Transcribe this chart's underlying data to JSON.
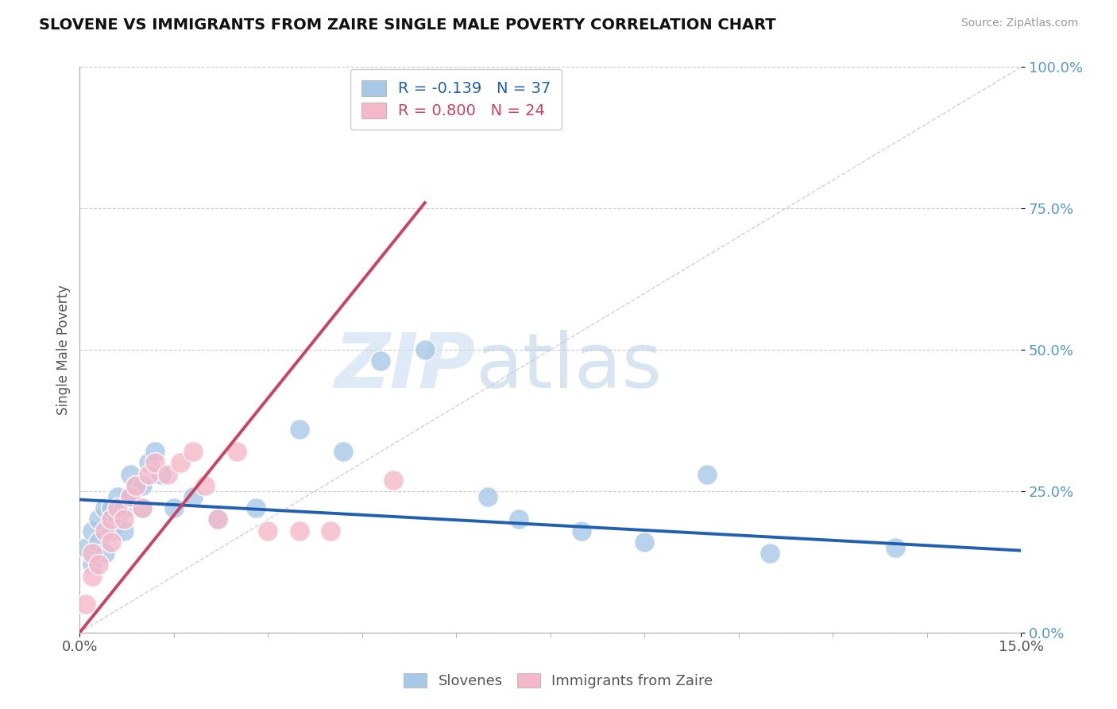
{
  "title": "SLOVENE VS IMMIGRANTS FROM ZAIRE SINGLE MALE POVERTY CORRELATION CHART",
  "source": "Source: ZipAtlas.com",
  "ylabel": "Single Male Poverty",
  "legend_blue_r": "R = -0.139",
  "legend_blue_n": "N = 37",
  "legend_pink_r": "R = 0.800",
  "legend_pink_n": "N = 24",
  "blue_color": "#a8c8e8",
  "pink_color": "#f4b8c8",
  "blue_line_color": "#2060b0",
  "pink_line_color": "#d04060",
  "diagonal_color": "#cccccc",
  "watermark_zip": "ZIP",
  "watermark_atlas": "atlas",
  "blue_scatter_x": [
    0.001,
    0.002,
    0.002,
    0.003,
    0.003,
    0.004,
    0.004,
    0.005,
    0.005,
    0.005,
    0.006,
    0.006,
    0.007,
    0.007,
    0.008,
    0.008,
    0.009,
    0.01,
    0.01,
    0.011,
    0.012,
    0.013,
    0.015,
    0.018,
    0.022,
    0.028,
    0.035,
    0.042,
    0.048,
    0.055,
    0.065,
    0.07,
    0.08,
    0.09,
    0.1,
    0.11,
    0.13
  ],
  "blue_scatter_y": [
    0.15,
    0.12,
    0.18,
    0.2,
    0.16,
    0.22,
    0.14,
    0.2,
    0.18,
    0.22,
    0.2,
    0.24,
    0.22,
    0.18,
    0.24,
    0.28,
    0.26,
    0.22,
    0.26,
    0.3,
    0.32,
    0.28,
    0.22,
    0.24,
    0.2,
    0.22,
    0.36,
    0.32,
    0.48,
    0.5,
    0.24,
    0.2,
    0.18,
    0.16,
    0.28,
    0.14,
    0.15
  ],
  "pink_scatter_x": [
    0.001,
    0.002,
    0.002,
    0.003,
    0.004,
    0.005,
    0.005,
    0.006,
    0.007,
    0.008,
    0.009,
    0.01,
    0.011,
    0.012,
    0.014,
    0.016,
    0.018,
    0.02,
    0.022,
    0.025,
    0.03,
    0.035,
    0.04,
    0.05
  ],
  "pink_scatter_y": [
    0.05,
    0.1,
    0.14,
    0.12,
    0.18,
    0.16,
    0.2,
    0.22,
    0.2,
    0.24,
    0.26,
    0.22,
    0.28,
    0.3,
    0.28,
    0.3,
    0.32,
    0.26,
    0.2,
    0.32,
    0.18,
    0.18,
    0.18,
    0.27
  ],
  "xlim": [
    0.0,
    0.15
  ],
  "ylim": [
    0.0,
    1.0
  ],
  "blue_line_x": [
    0.0,
    0.15
  ],
  "blue_line_y": [
    0.235,
    0.145
  ],
  "pink_line_x": [
    0.0,
    0.055
  ],
  "pink_line_y": [
    0.0,
    0.76
  ],
  "diag_line_x": [
    0.0,
    0.15
  ],
  "diag_line_y": [
    0.0,
    1.0
  ],
  "ytick_positions": [
    0.0,
    0.25,
    0.5,
    0.75,
    1.0
  ],
  "ytick_labels": [
    "0.0%",
    "25.0%",
    "50.0%",
    "75.0%",
    "100.0%"
  ]
}
